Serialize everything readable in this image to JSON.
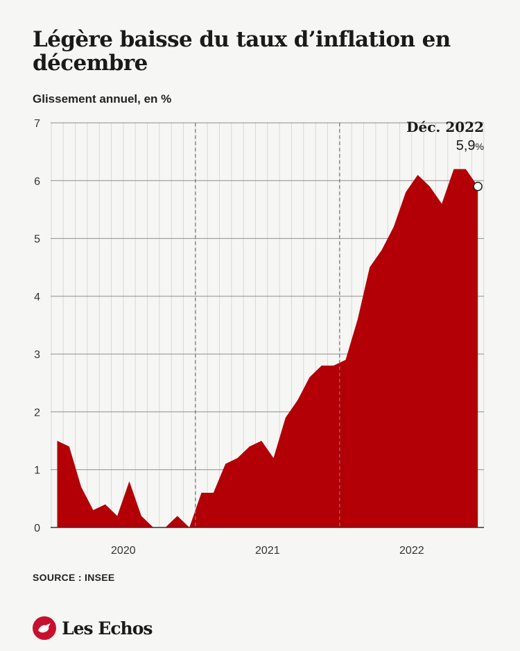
{
  "header": {
    "title": "Légère baisse du taux d’inflation en décembre",
    "subtitle": "Glissement annuel, en %"
  },
  "footer": {
    "source": "SOURCE : INSEE",
    "brand": "Les Echos"
  },
  "colors": {
    "area": "#b30006",
    "grid": "#d9d9d9",
    "axis": "#333333",
    "brand": "#c8102e"
  },
  "chart_data": {
    "type": "area",
    "title": "Légère baisse du taux d’inflation en décembre",
    "subtitle": "Glissement annuel, en %",
    "x": [
      "2020-01",
      "2020-02",
      "2020-03",
      "2020-04",
      "2020-05",
      "2020-06",
      "2020-07",
      "2020-08",
      "2020-09",
      "2020-10",
      "2020-11",
      "2020-12",
      "2021-01",
      "2021-02",
      "2021-03",
      "2021-04",
      "2021-05",
      "2021-06",
      "2021-07",
      "2021-08",
      "2021-09",
      "2021-10",
      "2021-11",
      "2021-12",
      "2022-01",
      "2022-02",
      "2022-03",
      "2022-04",
      "2022-05",
      "2022-06",
      "2022-07",
      "2022-08",
      "2022-09",
      "2022-10",
      "2022-11",
      "2022-12"
    ],
    "values": [
      1.5,
      1.4,
      0.7,
      0.3,
      0.4,
      0.2,
      0.8,
      0.2,
      0.0,
      0.0,
      0.2,
      0.0,
      0.6,
      0.6,
      1.1,
      1.2,
      1.4,
      1.5,
      1.2,
      1.9,
      2.2,
      2.6,
      2.8,
      2.8,
      2.9,
      3.6,
      4.5,
      4.8,
      5.2,
      5.8,
      6.1,
      5.9,
      5.6,
      6.2,
      6.2,
      5.9
    ],
    "ylim": [
      0,
      7
    ],
    "y_ticks": [
      "0",
      "1",
      "2",
      "3",
      "4",
      "5",
      "6",
      "7"
    ],
    "year_labels": [
      "2020",
      "2021",
      "2022"
    ],
    "grid": true,
    "annotation": {
      "label": "Déc. 2022",
      "value_text": "5,9",
      "unit": "%"
    }
  }
}
